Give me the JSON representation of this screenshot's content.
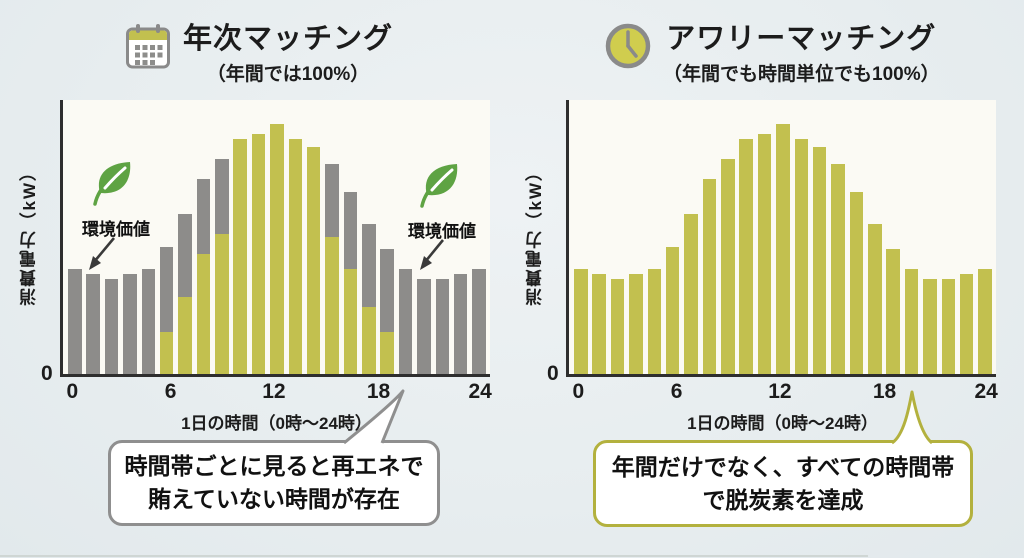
{
  "colors": {
    "green_bar": "#c2c04f",
    "gray_bar": "#8d8c8a",
    "leaf_green": "#5ea343",
    "axis": "#2e2e2e",
    "plot_bg": "#fbfaf4",
    "page_bg": "#e9eef0",
    "left_bubble_border": "#8f8f8f",
    "right_bubble_border": "#b3b13e"
  },
  "left_panel": {
    "icon": "calendar-icon",
    "title": "年次マッチング",
    "subtitle": "（年間では100%）",
    "annotation_left": {
      "icon": "leaf-icon",
      "label": "環境価値"
    },
    "annotation_right": {
      "icon": "leaf-icon",
      "label": "環境価値"
    },
    "callout": {
      "line1": "時間帯ごとに見ると再エネで",
      "line2": "賄えていない時間が存在"
    }
  },
  "right_panel": {
    "icon": "clock-icon",
    "title": "アワリーマッチング",
    "subtitle": "（年間でも時間単位でも100%）",
    "callout": {
      "line1": "年間だけでなく、すべての時間帯",
      "line2": "で脱炭素を達成"
    }
  },
  "chart_data": [
    {
      "type": "bar",
      "panel": "left",
      "title": "年次マッチング（年間では100%）",
      "xlabel": "1日の時間（0時〜24時）",
      "ylabel": "消費電力（kW）",
      "x_ticks": [
        "0",
        "6",
        "12",
        "18",
        "24"
      ],
      "x_tick_positions_pct": [
        2.2,
        25.2,
        49.4,
        73.9,
        97.7
      ],
      "y_ticks": [
        "0"
      ],
      "ylim": [
        0,
        105
      ],
      "units": "% of peak demand (axis shows no numbers)",
      "bar_count": 23,
      "stacked": true,
      "total_values": [
        42,
        40,
        38,
        40,
        42,
        51,
        64,
        78,
        86,
        94,
        96,
        100,
        94,
        91,
        84,
        73,
        60,
        50,
        42,
        38,
        38,
        40,
        42
      ],
      "green_values": [
        0,
        0,
        0,
        0,
        0,
        17,
        31,
        48,
        56,
        94,
        96,
        100,
        94,
        91,
        55,
        42,
        27,
        17,
        0,
        0,
        0,
        0,
        0
      ],
      "legend": "green = renewable-matched hours, gray = hours not covered by renewables (covered by 環境価値 certificates)"
    },
    {
      "type": "bar",
      "panel": "right",
      "title": "アワリーマッチング（年間でも時間単位でも100%）",
      "xlabel": "1日の時間（0時〜24時）",
      "ylabel": "消費電力（kW）",
      "x_ticks": [
        "0",
        "6",
        "12",
        "18",
        "24"
      ],
      "x_tick_positions_pct": [
        2.2,
        25.2,
        49.4,
        73.9,
        97.7
      ],
      "y_ticks": [
        "0"
      ],
      "ylim": [
        0,
        105
      ],
      "units": "% of peak demand (axis shows no numbers)",
      "bar_count": 23,
      "stacked": false,
      "total_values": [
        42,
        40,
        38,
        40,
        42,
        51,
        64,
        78,
        86,
        94,
        96,
        100,
        94,
        91,
        84,
        73,
        60,
        50,
        42,
        38,
        38,
        40,
        42
      ],
      "green_values": [
        42,
        40,
        38,
        40,
        42,
        51,
        64,
        78,
        86,
        94,
        96,
        100,
        94,
        91,
        84,
        73,
        60,
        50,
        42,
        38,
        38,
        40,
        42
      ],
      "legend": "all hours fully matched by renewables (all bars green)"
    }
  ]
}
